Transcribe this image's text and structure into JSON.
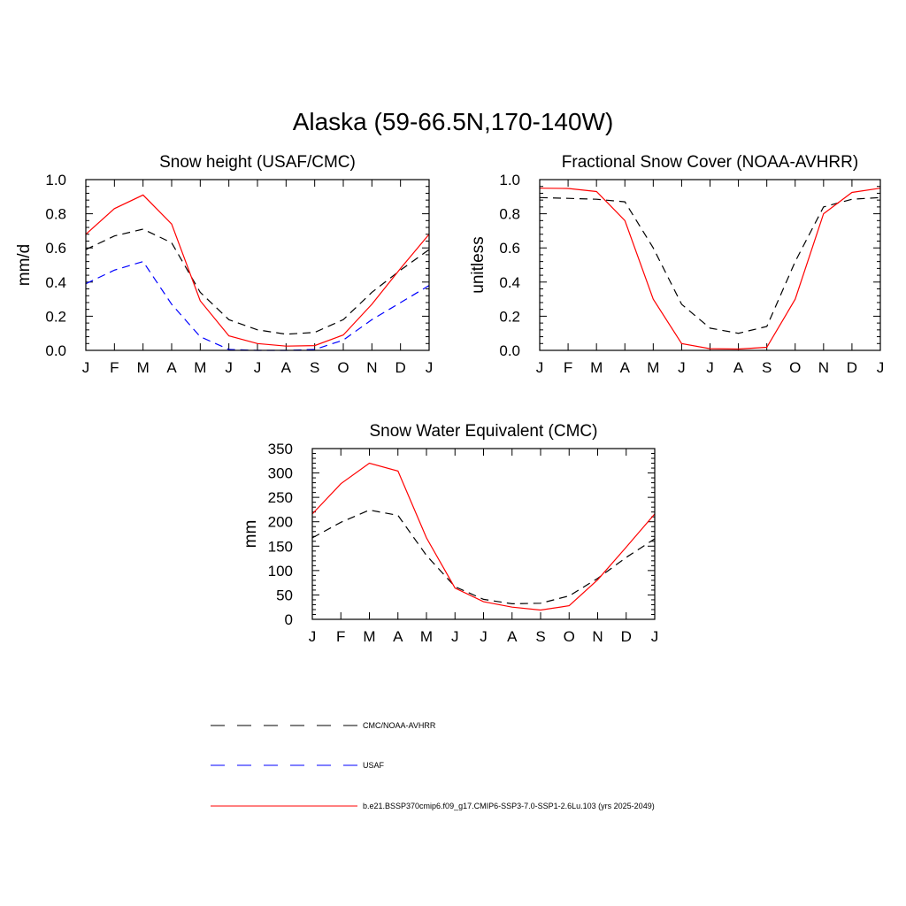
{
  "title": "Alaska (59-66.5N,170-140W)",
  "months": [
    "J",
    "F",
    "M",
    "A",
    "M",
    "J",
    "J",
    "A",
    "S",
    "O",
    "N",
    "D",
    "J"
  ],
  "colors": {
    "obs_black": "#000000",
    "usaf_blue": "#0000ff",
    "model_red": "#ff0000"
  },
  "legend": [
    {
      "label": "CMC/NOAA-AVHRR",
      "color": "#000000",
      "dash": "dashed"
    },
    {
      "label": "USAF",
      "color": "#0000ff",
      "dash": "dashed"
    },
    {
      "label": "b.e21.BSSP370cmip6.f09_g17.CMIP6-SSP3-7.0-SSP1-2.6Lu.103 (yrs 2025-2049)",
      "color": "#ff0000",
      "dash": "solid"
    }
  ],
  "chart_data": [
    {
      "type": "line",
      "title": "Snow height (USAF/CMC)",
      "ylabel": "mm/d",
      "ylim": [
        0,
        1.0
      ],
      "yticks": [
        "0.0",
        "0.2",
        "0.4",
        "0.6",
        "0.8",
        "1.0"
      ],
      "ytick_values": [
        0,
        0.2,
        0.4,
        0.6,
        0.8,
        1.0
      ],
      "x": [
        "J",
        "F",
        "M",
        "A",
        "M",
        "J",
        "J",
        "A",
        "S",
        "O",
        "N",
        "D",
        "J"
      ],
      "series": [
        {
          "name": "CMC/NOAA-AVHRR",
          "color": "#000000",
          "dash": "dashed",
          "values": [
            0.59,
            0.67,
            0.71,
            0.63,
            0.34,
            0.18,
            0.12,
            0.095,
            0.105,
            0.18,
            0.34,
            0.47,
            0.59
          ]
        },
        {
          "name": "USAF",
          "color": "#0000ff",
          "dash": "dashed",
          "values": [
            0.39,
            0.47,
            0.52,
            0.27,
            0.08,
            0.005,
            0.0,
            0.0,
            0.005,
            0.06,
            0.18,
            0.28,
            0.38
          ]
        },
        {
          "name": "b.e21.BSSP370cmip6.f09_g17.CMIP6-SSP3-7.0-SSP1-2.6Lu.103 (yrs 2025-2049)",
          "color": "#ff0000",
          "dash": "solid",
          "values": [
            0.68,
            0.83,
            0.91,
            0.74,
            0.29,
            0.085,
            0.04,
            0.025,
            0.028,
            0.09,
            0.27,
            0.48,
            0.68
          ]
        }
      ]
    },
    {
      "type": "line",
      "title": "Fractional Snow Cover (NOAA-AVHRR)",
      "ylabel": "unitless",
      "ylim": [
        0,
        1.0
      ],
      "yticks": [
        "0.0",
        "0.2",
        "0.4",
        "0.6",
        "0.8",
        "1.0"
      ],
      "ytick_values": [
        0,
        0.2,
        0.4,
        0.6,
        0.8,
        1.0
      ],
      "x": [
        "J",
        "F",
        "M",
        "A",
        "M",
        "J",
        "J",
        "A",
        "S",
        "O",
        "N",
        "D",
        "J"
      ],
      "series": [
        {
          "name": "CMC/NOAA-AVHRR",
          "color": "#000000",
          "dash": "dashed",
          "values": [
            0.895,
            0.89,
            0.885,
            0.87,
            0.6,
            0.27,
            0.13,
            0.1,
            0.14,
            0.52,
            0.84,
            0.885,
            0.895
          ]
        },
        {
          "name": "b.e21.BSSP370cmip6.f09_g17.CMIP6-SSP3-7.0-SSP1-2.6Lu.103 (yrs 2025-2049)",
          "color": "#ff0000",
          "dash": "solid",
          "values": [
            0.95,
            0.948,
            0.93,
            0.76,
            0.3,
            0.04,
            0.01,
            0.008,
            0.018,
            0.3,
            0.8,
            0.925,
            0.95
          ]
        }
      ]
    },
    {
      "type": "line",
      "title": "Snow Water Equivalent (CMC)",
      "ylabel": "mm",
      "ylim": [
        0,
        350
      ],
      "yticks": [
        "0",
        "50",
        "100",
        "150",
        "200",
        "250",
        "300",
        "350"
      ],
      "ytick_values": [
        0,
        50,
        100,
        150,
        200,
        250,
        300,
        350
      ],
      "x": [
        "J",
        "F",
        "M",
        "A",
        "M",
        "J",
        "J",
        "A",
        "S",
        "O",
        "N",
        "D",
        "J"
      ],
      "series": [
        {
          "name": "CMC/NOAA-AVHRR",
          "color": "#000000",
          "dash": "dashed",
          "values": [
            167,
            199,
            224,
            213,
            131,
            67,
            41,
            32,
            33,
            48,
            84,
            127,
            165
          ]
        },
        {
          "name": "b.e21.BSSP370cmip6.f09_g17.CMIP6-SSP3-7.0-SSP1-2.6Lu.103 (yrs 2025-2049)",
          "color": "#ff0000",
          "dash": "solid",
          "values": [
            216,
            278,
            320,
            304,
            167,
            64,
            36,
            25,
            19,
            28,
            81,
            148,
            216
          ]
        }
      ]
    }
  ]
}
